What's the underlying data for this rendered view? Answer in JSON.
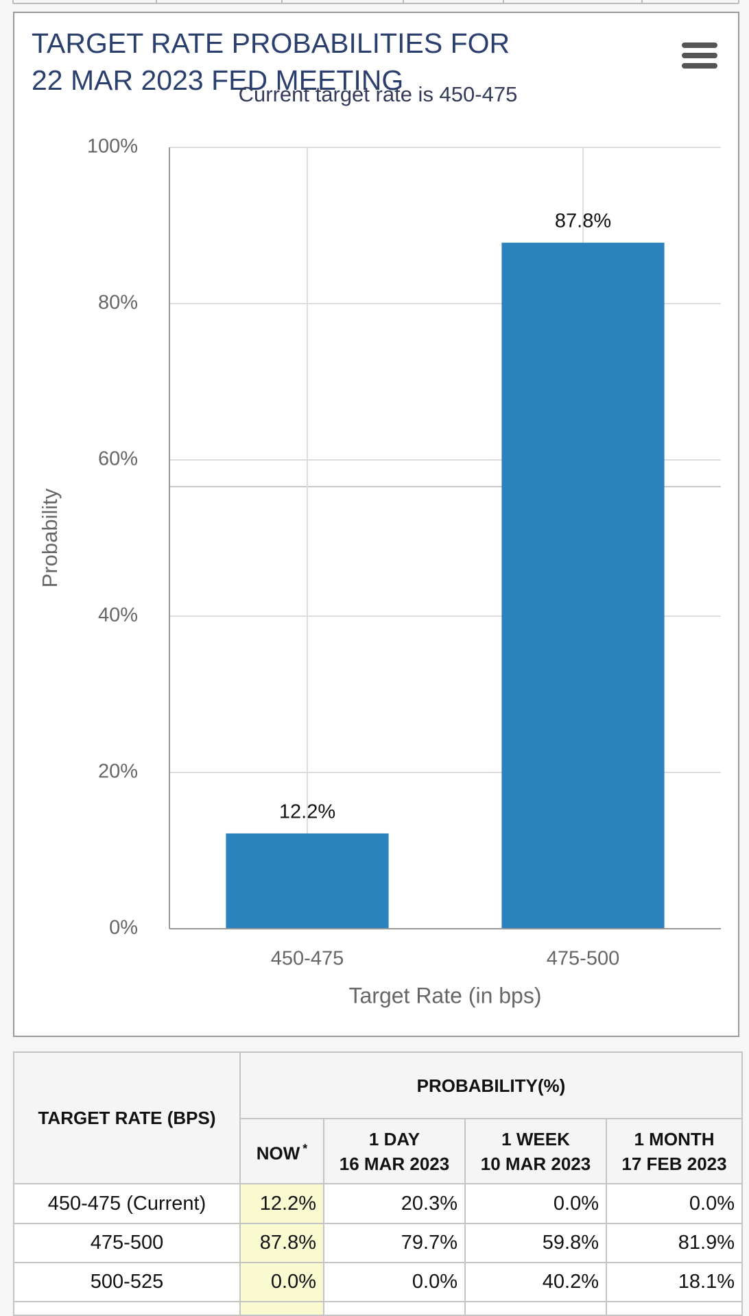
{
  "chart_data": {
    "type": "bar",
    "title": [
      "TARGET RATE PROBABILITIES FOR",
      "22 MAR 2023 FED MEETING"
    ],
    "subtitle": "Current target rate is 450-475",
    "x_label": "Target Rate (in bps)",
    "y_label": "Probability",
    "categories": [
      "450-475",
      "475-500"
    ],
    "values": [
      12.2,
      87.8
    ],
    "value_labels": [
      "12.2%",
      "87.8%"
    ],
    "color": "#2b82bc",
    "ylim": [
      0,
      100
    ],
    "yticks": [
      {
        "value": 0,
        "label": "0%"
      },
      {
        "value": 20,
        "label": "20%"
      },
      {
        "value": 40,
        "label": "40%"
      },
      {
        "value": 60,
        "label": "60%"
      },
      {
        "value": 80,
        "label": "80%"
      },
      {
        "value": 100,
        "label": "100%"
      }
    ],
    "grid": true
  },
  "table": {
    "header": "TARGET RATE (BPS)",
    "group": "PROBABILITY(%)",
    "columns": [
      {
        "label": "NOW",
        "note": "*"
      },
      {
        "label": "1 DAY",
        "date": "16 MAR 2023"
      },
      {
        "label": "1 WEEK",
        "date": "10 MAR 2023"
      },
      {
        "label": "1 MONTH",
        "date": "17 FEB 2023"
      }
    ],
    "rows": [
      [
        "450-475 (Current)",
        "12.2%",
        "20.3%",
        "0.0%",
        "0.0%"
      ],
      [
        "475-500",
        "87.8%",
        "79.7%",
        "59.8%",
        "81.9%"
      ],
      [
        "500-525",
        "0.0%",
        "0.0%",
        "40.2%",
        "18.1%"
      ]
    ]
  }
}
